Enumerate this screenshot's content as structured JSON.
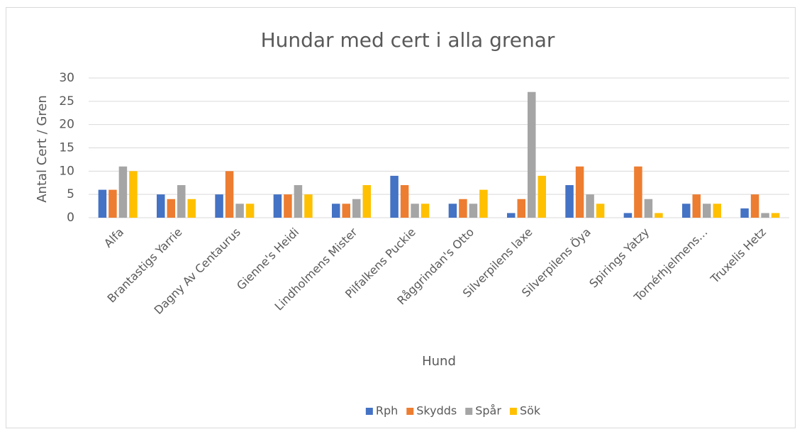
{
  "chart_data": {
    "type": "bar",
    "title": "Hundar med cert i alla grenar",
    "x_label": "Hund",
    "y_label": "Antal Cert  / Gren",
    "categories": [
      "Alfa",
      "Brantastigs Yarrie",
      "Dagny Av Centaurus",
      "Gienne's Heidi",
      "Lindholmens Mister",
      "Pilfalkens Puckie",
      "Råggrindan's Otto",
      "Silverpilens laxe",
      "Silverpilens Öya",
      "Spirings Yatzy",
      "Tornérhjelmens…",
      "Truxelis Hetz"
    ],
    "series": [
      {
        "name": "Rph",
        "color": "#4472c4",
        "values": [
          6,
          5,
          5,
          5,
          3,
          9,
          3,
          1,
          7,
          1,
          3,
          2
        ]
      },
      {
        "name": "Skydds",
        "color": "#ed7d31",
        "values": [
          6,
          4,
          10,
          5,
          3,
          7,
          4,
          4,
          11,
          11,
          5,
          5
        ]
      },
      {
        "name": "Spår",
        "color": "#a5a5a5",
        "values": [
          11,
          7,
          3,
          7,
          4,
          3,
          3,
          27,
          5,
          4,
          3,
          1
        ]
      },
      {
        "name": "Sök",
        "color": "#ffc000",
        "values": [
          10,
          4,
          3,
          5,
          7,
          3,
          6,
          9,
          3,
          1,
          3,
          1
        ]
      }
    ],
    "ylim": [
      0,
      30
    ],
    "yticks": [
      0,
      5,
      10,
      15,
      20,
      25,
      30
    ],
    "grid": true,
    "legend": "bottom"
  }
}
